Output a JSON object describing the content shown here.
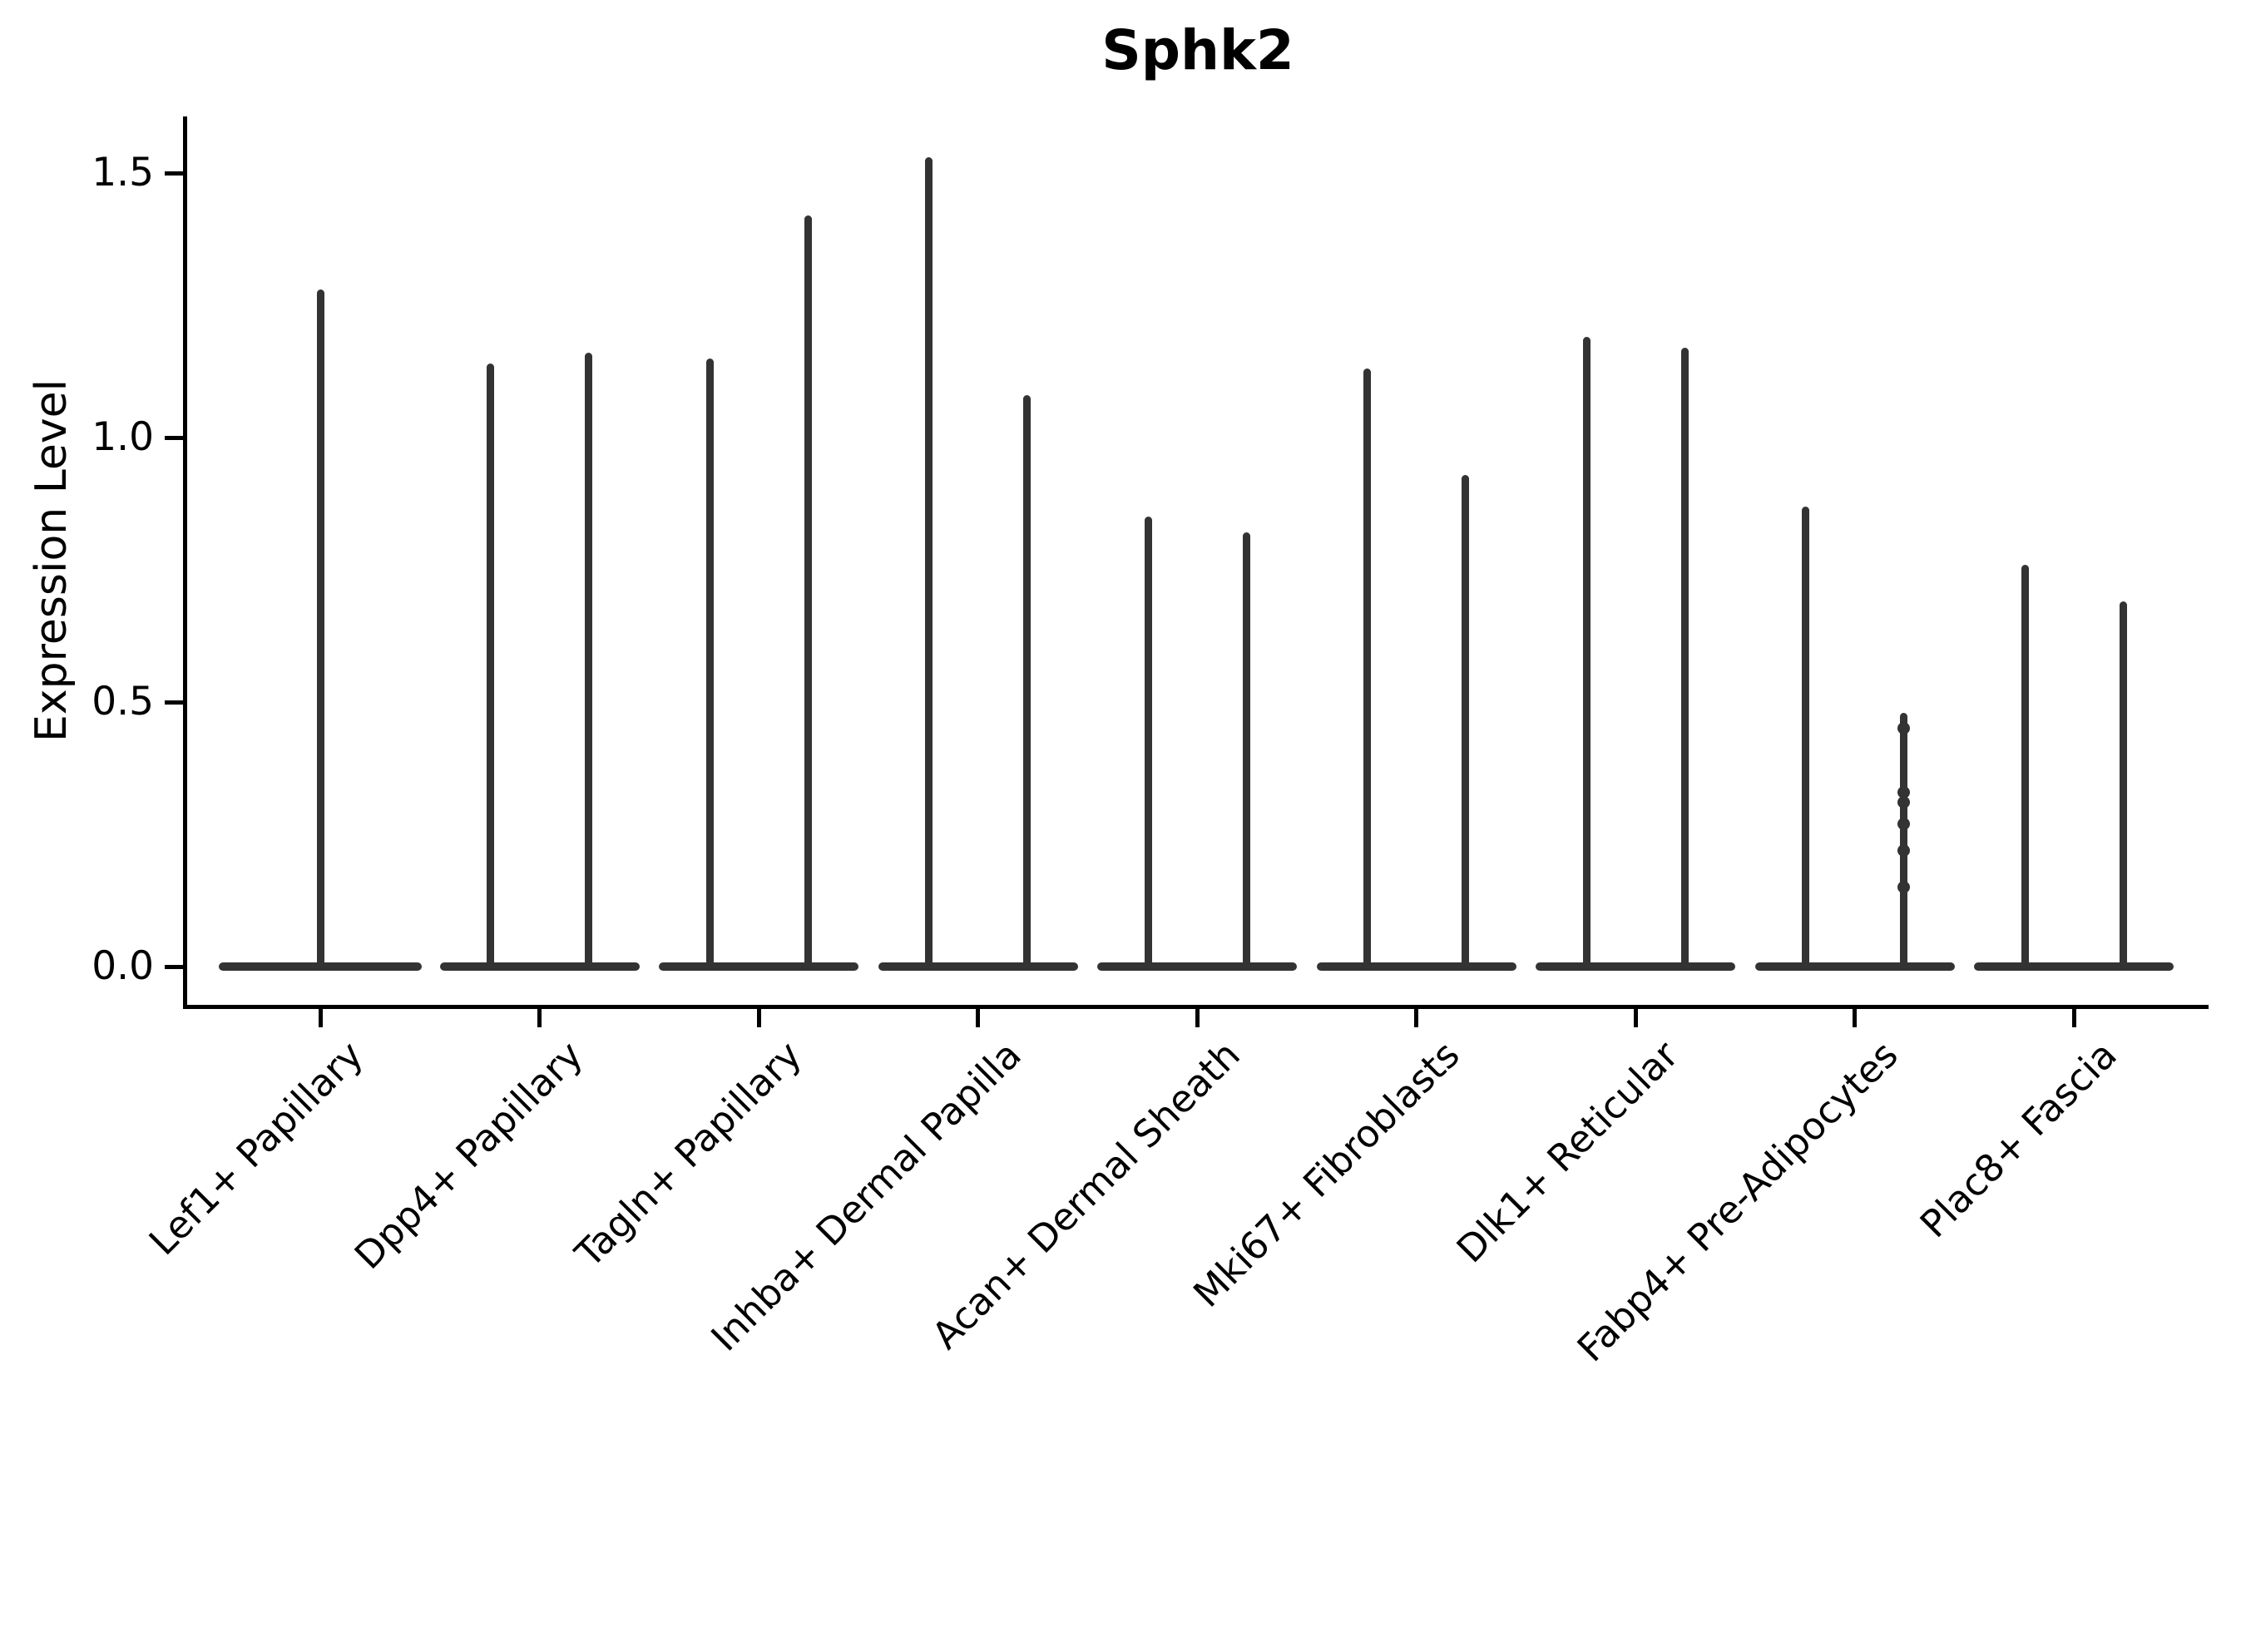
{
  "title": "Sphk2",
  "y_axis": {
    "label": "Expression Level",
    "tick_labels": [
      "0.0",
      "0.5",
      "1.0",
      "1.5"
    ],
    "tick_values": [
      0.0,
      0.5,
      1.0,
      1.5
    ]
  },
  "chart_data": {
    "type": "violin",
    "title": "Sphk2",
    "xlabel": "",
    "ylabel": "Expression Level",
    "ylim": [
      -0.07,
      1.61
    ],
    "yticks": [
      0.0,
      0.5,
      1.0,
      1.5
    ],
    "ytick_labels": [
      "0.0",
      "0.5",
      "1.0",
      "1.5"
    ],
    "grid": false,
    "legend": "none",
    "violin_color": "#333333",
    "categories": [
      "Lef1+ Papillary",
      "Dpp4+ Papillary",
      "Tagln+ Papillary",
      "Inhba+ Dermal Papilla",
      "Acan+ Dermal Sheath",
      "Mki67+ Fibroblasts",
      "Dlk1+ Reticular",
      "Fabp4+ Pre-Adipocytes",
      "Plac8+ Fascia"
    ],
    "description": "Violin plot of Sphk2 expression; each category shows a wide flat density at 0 with thin spikes reaching the maximum expression values.",
    "violins": [
      {
        "category": "Lef1+ Papillary",
        "spike_offsets": [
          0
        ],
        "spike_maxima": [
          1.28
        ]
      },
      {
        "category": "Dpp4+ Papillary",
        "spike_offsets": [
          -1,
          1
        ],
        "spike_maxima": [
          1.14,
          1.16
        ]
      },
      {
        "category": "Tagln+ Papillary",
        "spike_offsets": [
          -1,
          1
        ],
        "spike_maxima": [
          1.15,
          1.42
        ]
      },
      {
        "category": "Inhba+ Dermal Papilla",
        "spike_offsets": [
          -1,
          1
        ],
        "spike_maxima": [
          1.53,
          1.08
        ]
      },
      {
        "category": "Acan+ Dermal Sheath",
        "spike_offsets": [
          -1,
          1
        ],
        "spike_maxima": [
          0.85,
          0.82
        ]
      },
      {
        "category": "Mki67+ Fibroblasts",
        "spike_offsets": [
          -1,
          1
        ],
        "spike_maxima": [
          1.13,
          0.93
        ]
      },
      {
        "category": "Dlk1+ Reticular",
        "spike_offsets": [
          -1,
          1
        ],
        "spike_maxima": [
          1.19,
          1.17
        ]
      },
      {
        "category": "Fabp4+ Pre-Adipocytes",
        "spike_offsets": [
          -1,
          1
        ],
        "spike_maxima": [
          0.87,
          0.48
        ],
        "jitter_points": [
          0.45,
          0.33,
          0.31,
          0.27,
          0.22,
          0.15
        ]
      },
      {
        "category": "Plac8+ Fascia",
        "spike_offsets": [
          -1,
          1
        ],
        "spike_maxima": [
          0.76,
          0.69
        ]
      }
    ]
  }
}
